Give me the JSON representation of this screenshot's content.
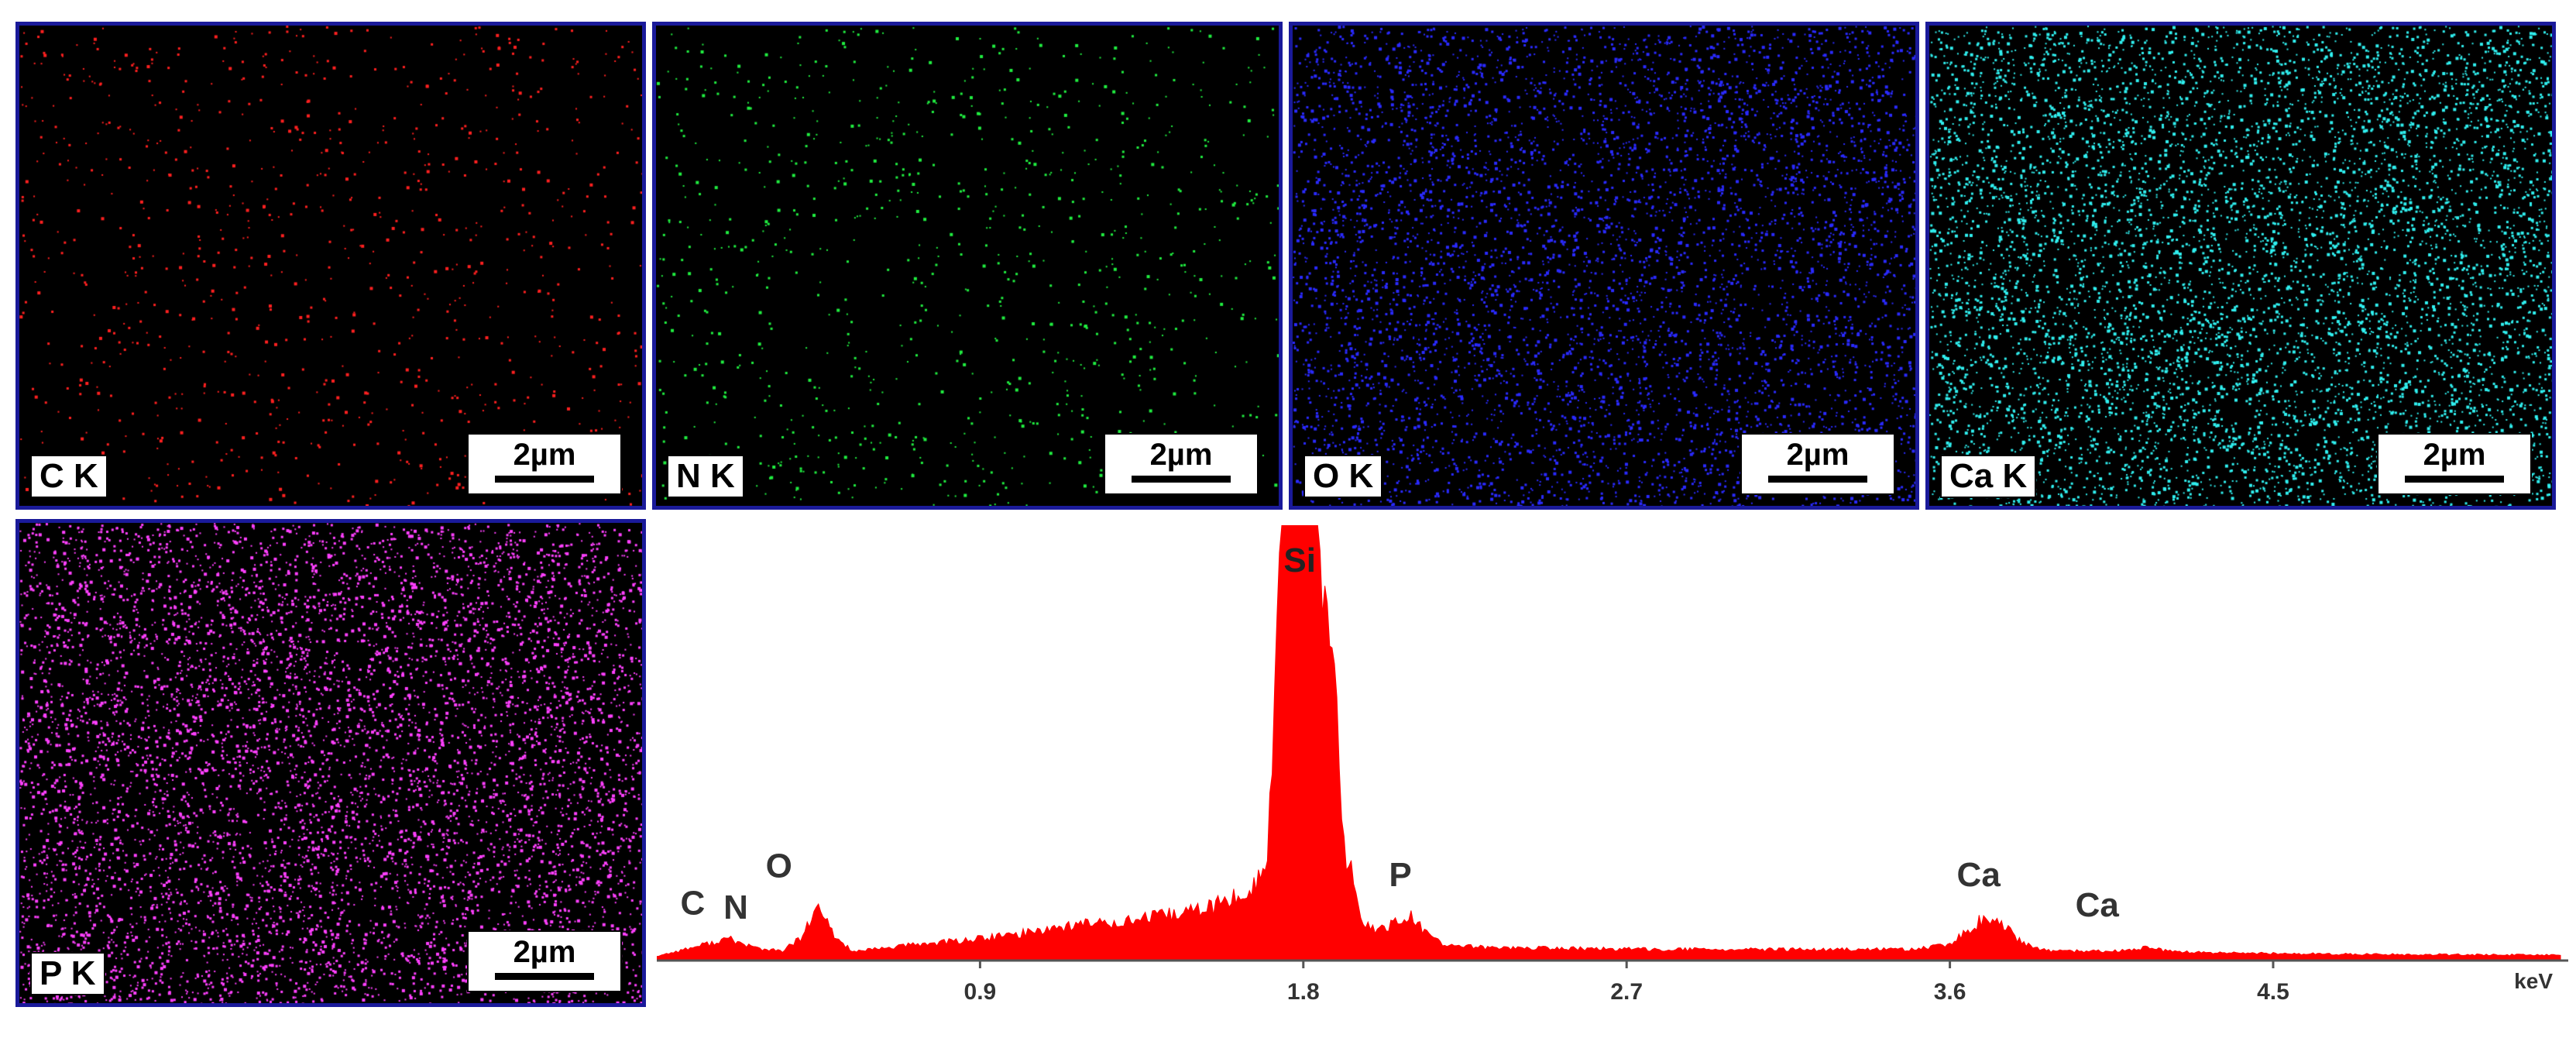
{
  "maps": [
    {
      "label": "C K",
      "color": "#ff2020",
      "scale": "2µm",
      "density": 900
    },
    {
      "label": "N K",
      "color": "#20ee40",
      "scale": "2µm",
      "density": 900
    },
    {
      "label": "O K",
      "color": "#2a2aff",
      "scale": "2µm",
      "density": 5200
    },
    {
      "label": "Ca K",
      "color": "#30f0f0",
      "scale": "2µm",
      "density": 6500
    },
    {
      "label": "P K",
      "color": "#ff40ff",
      "scale": "2µm",
      "density": 6500
    }
  ],
  "chart_data": {
    "type": "area",
    "xlabel": "keV",
    "ylabel": "",
    "xlim": [
      0,
      5.3
    ],
    "ylim": [
      0,
      100
    ],
    "x_ticks": [
      "0.9",
      "1.8",
      "2.7",
      "3.6",
      "4.5"
    ],
    "x_tick_values": [
      0.9,
      1.8,
      2.7,
      3.6,
      4.5
    ],
    "series": [
      {
        "color": "#ff0000",
        "x": [
          0.0,
          0.1,
          0.2,
          0.25,
          0.3,
          0.35,
          0.4,
          0.45,
          0.5,
          0.55,
          0.6,
          0.7,
          0.8,
          0.9,
          1.0,
          1.1,
          1.2,
          1.3,
          1.4,
          1.5,
          1.55,
          1.6,
          1.65,
          1.7,
          1.74,
          1.84,
          1.88,
          1.92,
          1.96,
          2.0,
          2.05,
          2.1,
          2.15,
          2.2,
          2.3,
          2.5,
          2.7,
          3.0,
          3.3,
          3.5,
          3.6,
          3.65,
          3.7,
          3.75,
          3.8,
          3.85,
          3.9,
          4.0,
          4.1,
          4.15,
          4.2,
          4.3,
          4.5,
          4.8,
          5.1,
          5.3
        ],
        "y": [
          1.0,
          3.0,
          5.0,
          3.5,
          2.5,
          2.2,
          5.0,
          12.0,
          5.0,
          2.0,
          2.5,
          3.5,
          4.2,
          5.0,
          6.0,
          7.5,
          8.5,
          9.0,
          10.0,
          11.5,
          12.5,
          14.0,
          16.0,
          22.0,
          100.0,
          100.0,
          65.0,
          25.0,
          9.0,
          7.0,
          8.5,
          10.0,
          5.5,
          3.5,
          3.0,
          2.8,
          2.6,
          2.5,
          2.5,
          2.6,
          3.5,
          7.0,
          10.0,
          8.0,
          4.0,
          2.5,
          2.2,
          2.1,
          2.3,
          3.0,
          2.2,
          1.8,
          1.6,
          1.4,
          1.3,
          1.2
        ]
      }
    ],
    "annotations": [
      {
        "text": "C",
        "x": 0.1,
        "y": 3.5
      },
      {
        "text": "N",
        "x": 0.22,
        "y": 2.5
      },
      {
        "text": "O",
        "x": 0.34,
        "y": 12.0
      },
      {
        "text": "Si",
        "x": 1.79,
        "y": 100.0
      },
      {
        "text": "P",
        "x": 2.07,
        "y": 10.0
      },
      {
        "text": "Ca",
        "x": 3.68,
        "y": 10.0
      },
      {
        "text": "Ca",
        "x": 4.01,
        "y": 3.0
      }
    ]
  }
}
